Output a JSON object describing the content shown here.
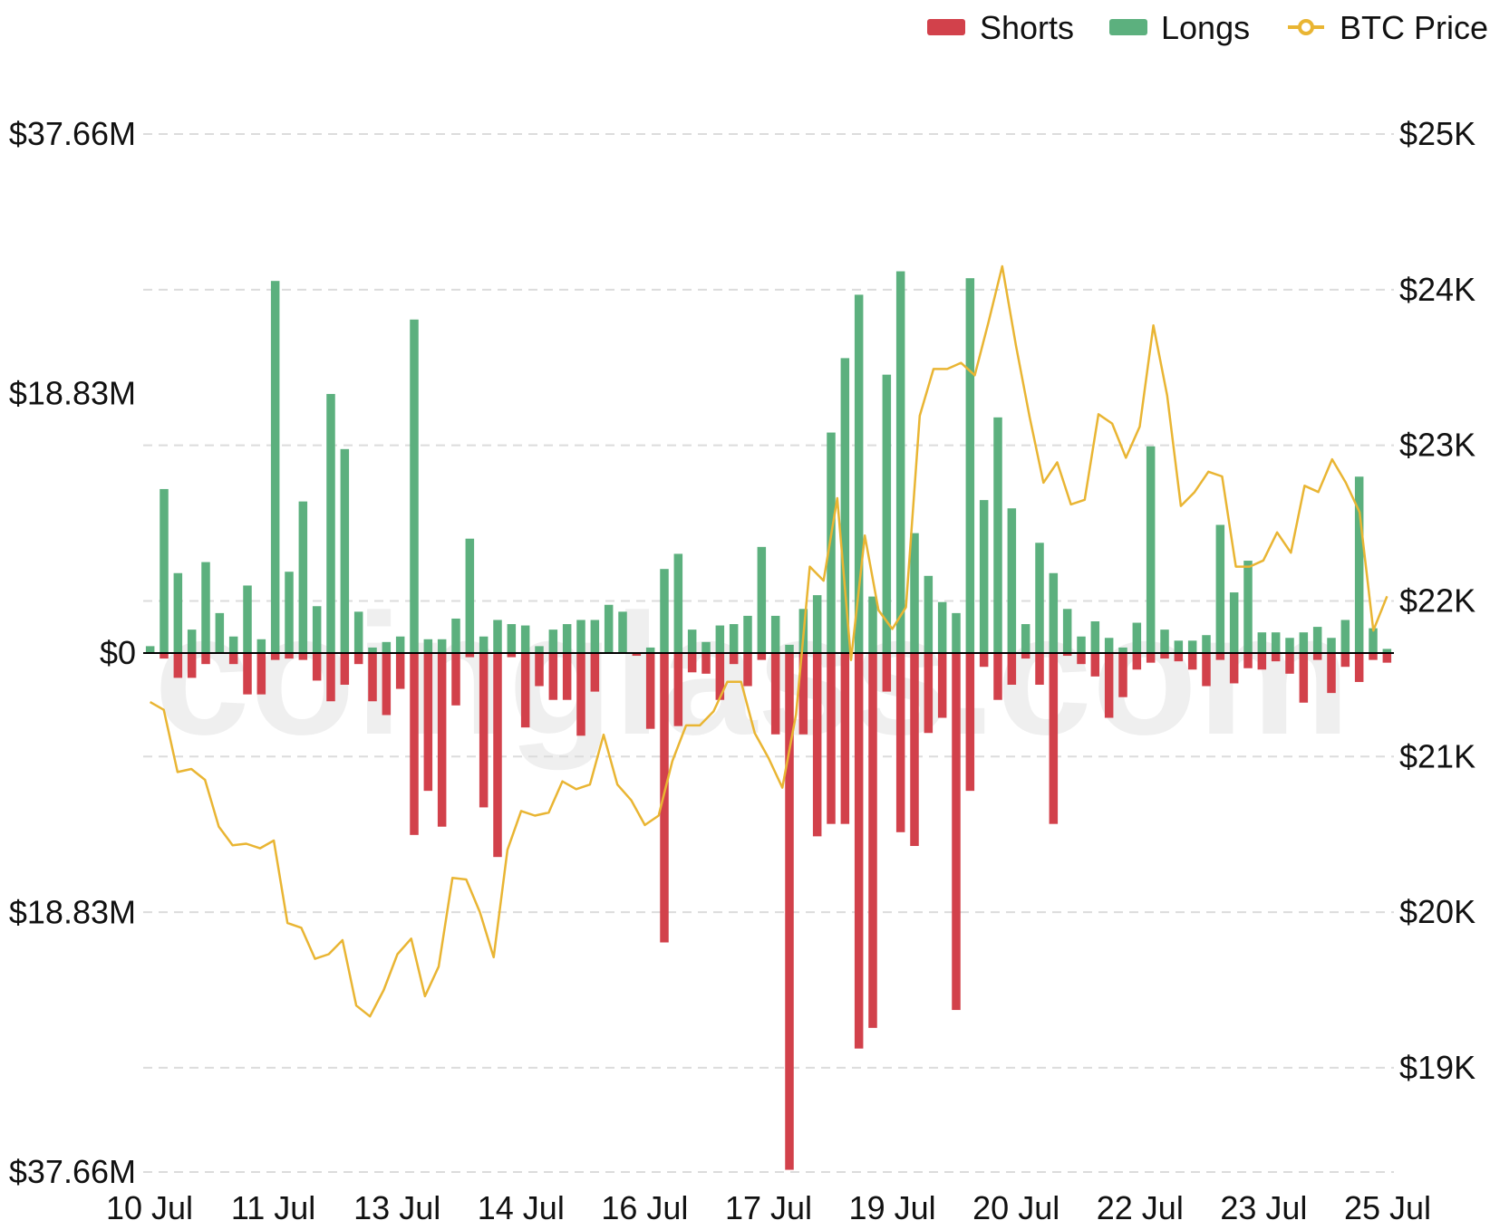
{
  "chart_data": {
    "type": "bar",
    "watermark": "coinglass.com",
    "legend": {
      "placement": "top-right",
      "items": [
        {
          "name": "Shorts",
          "color": "#d2414b",
          "marker": "bar"
        },
        {
          "name": "Longs",
          "color": "#5cb07e",
          "marker": "bar"
        },
        {
          "name": "BTC Price",
          "color": "#e9b533",
          "marker": "line"
        }
      ]
    },
    "y_left": {
      "ticks": [
        37.66,
        18.83,
        0,
        -18.83,
        -37.66
      ],
      "tick_labels": [
        "$37.66M",
        "$18.83M",
        "$0",
        "$18.83M",
        "$37.66M"
      ],
      "range": [
        -37.66,
        37.66
      ],
      "unit": "USD millions"
    },
    "y_right": {
      "ticks": [
        25000,
        24000,
        23000,
        22000,
        21000,
        20000,
        19000
      ],
      "tick_labels": [
        "$25K",
        "$24K",
        "$23K",
        "$22K",
        "$21K",
        "$20K",
        "$19K"
      ],
      "range": [
        18330,
        25000
      ]
    },
    "x": {
      "tick_labels": [
        "10 Jul",
        "11 Jul",
        "13 Jul",
        "14 Jul",
        "16 Jul",
        "17 Jul",
        "19 Jul",
        "20 Jul",
        "22 Jul",
        "23 Jul",
        "25 Jul"
      ]
    },
    "grid": true,
    "series": [
      {
        "name": "Longs",
        "axis": "left",
        "values": [
          0.5,
          11.9,
          5.8,
          1.7,
          6.6,
          2.9,
          1.2,
          4.9,
          1.0,
          27.0,
          5.9,
          11.0,
          3.4,
          18.8,
          14.8,
          3.0,
          0.4,
          0.8,
          1.2,
          24.2,
          1.0,
          1.0,
          2.5,
          8.3,
          1.2,
          2.4,
          2.1,
          2.0,
          0.5,
          1.7,
          2.1,
          2.4,
          2.4,
          3.5,
          3.0,
          0,
          0.4,
          6.1,
          7.2,
          1.7,
          0.8,
          2.0,
          2.1,
          2.7,
          7.7,
          2.7,
          0.6,
          3.2,
          4.2,
          16.0,
          21.4,
          26.0,
          4.1,
          20.2,
          27.7,
          8.7,
          5.6,
          3.7,
          2.9,
          27.2,
          11.1,
          17.1,
          10.5,
          2.1,
          8.0,
          5.8,
          3.2,
          1.2,
          2.3,
          1.1,
          0.4,
          2.2,
          15.0,
          1.7,
          0.9,
          0.9,
          1.3,
          9.3,
          4.4,
          6.7,
          1.5,
          1.5,
          1.1,
          1.5,
          1.9,
          1.1,
          2.4,
          12.8,
          1.8,
          0.3
        ]
      },
      {
        "name": "Shorts",
        "axis": "left",
        "values": [
          0,
          -0.4,
          -1.8,
          -1.8,
          -0.8,
          0,
          -0.8,
          -3.0,
          -3.0,
          -0.5,
          -0.4,
          -0.5,
          -2.0,
          -3.5,
          -2.3,
          -0.8,
          -3.5,
          -4.5,
          -2.6,
          -13.2,
          -10.0,
          -12.6,
          -3.8,
          -0.3,
          -11.2,
          -14.8,
          -0.3,
          -5.4,
          -2.4,
          -3.4,
          -3.4,
          -6.0,
          -2.8,
          0,
          0,
          -0.2,
          -5.5,
          -21.0,
          -5.3,
          -1.4,
          -1.5,
          -3.4,
          -0.8,
          -2.4,
          -0.5,
          -5.9,
          -37.5,
          -5.9,
          -13.3,
          -12.4,
          -12.4,
          -28.7,
          -27.2,
          -2.8,
          -13.0,
          -14.0,
          -5.8,
          -4.7,
          -25.9,
          -10.0,
          -1.0,
          -3.4,
          -2.3,
          -0.4,
          -2.3,
          -12.4,
          -0.2,
          -0.8,
          -1.7,
          -4.7,
          -3.2,
          -1.2,
          -0.7,
          -0.4,
          -0.6,
          -1.2,
          -2.4,
          -0.5,
          -2.2,
          -1.1,
          -1.2,
          -0.6,
          -1.5,
          -3.6,
          -0.5,
          -2.9,
          -1.0,
          -2.1,
          -0.5,
          -0.7
        ]
      },
      {
        "name": "BTC Price",
        "axis": "right",
        "values": [
          21350,
          21300,
          20900,
          20920,
          20850,
          20550,
          20430,
          20440,
          20410,
          20460,
          19930,
          19900,
          19700,
          19730,
          19820,
          19400,
          19330,
          19500,
          19730,
          19830,
          19460,
          19650,
          20220,
          20210,
          20000,
          19710,
          20400,
          20650,
          20620,
          20640,
          20840,
          20790,
          20820,
          21140,
          20820,
          20720,
          20560,
          20620,
          20970,
          21200,
          21200,
          21290,
          21480,
          21480,
          21150,
          20990,
          20800,
          21270,
          22220,
          22130,
          22660,
          21620,
          22420,
          21940,
          21820,
          21960,
          23190,
          23490,
          23490,
          23530,
          23450,
          23790,
          24150,
          23640,
          23180,
          22760,
          22890,
          22620,
          22650,
          23200,
          23140,
          22920,
          23120,
          23770,
          23320,
          22610,
          22700,
          22830,
          22800,
          22220,
          22220,
          22260,
          22440,
          22310,
          22740,
          22700,
          22910,
          22760,
          22570,
          21810,
          22030
        ]
      }
    ]
  }
}
